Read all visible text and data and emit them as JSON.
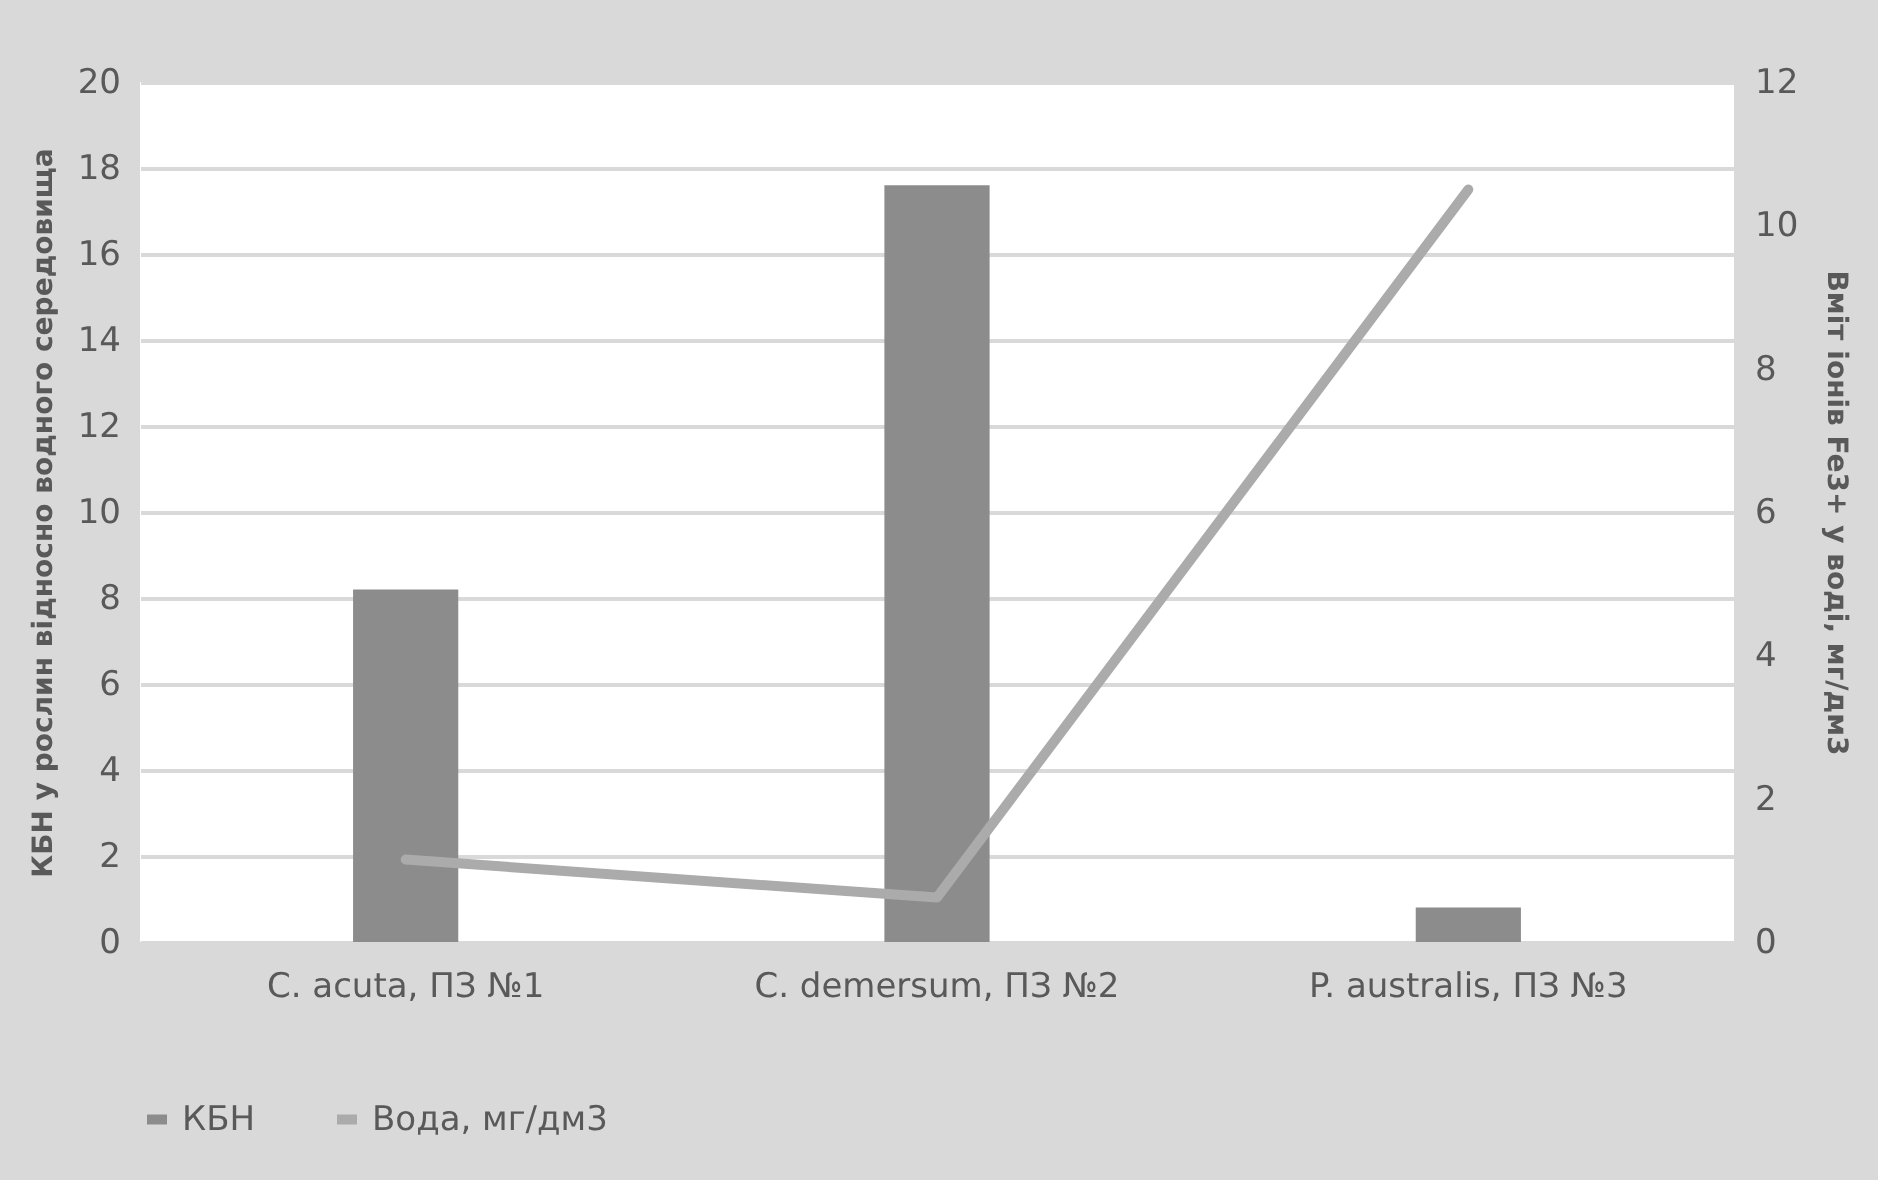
{
  "chart_data": {
    "type": "bar",
    "ylabel": "КБН у рослин відносно водного середовища",
    "y2label": "Вміт іонів Fe3+ у воді, мг/дм3",
    "categories": [
      "C. acuta, ПЗ №1",
      "C. demersum, ПЗ №2",
      "P. australis, ПЗ №3"
    ],
    "series": [
      {
        "name": "КБН",
        "color": "#8c8c8c",
        "values": [
          8.2,
          17.6,
          0.8
        ]
      },
      {
        "name": "Вода, мг/дм3",
        "type": "line",
        "axis": "y2",
        "color": "#ababab",
        "values": [
          1.15,
          0.62,
          10.5
        ]
      }
    ],
    "ylim": [
      0,
      20
    ],
    "yticks": [
      0,
      2,
      4,
      6,
      8,
      10,
      12,
      14,
      16,
      18,
      20
    ],
    "y2lim": [
      0,
      12
    ],
    "y2ticks": [
      0,
      2,
      4,
      6,
      8,
      10,
      12
    ],
    "grid": "y",
    "legend": "bottom"
  }
}
